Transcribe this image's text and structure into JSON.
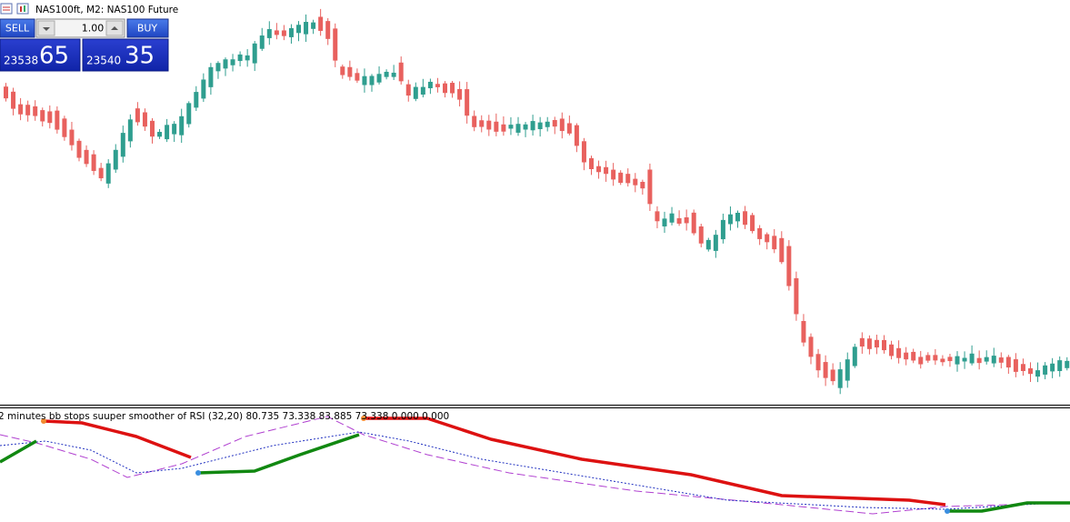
{
  "header": {
    "symbol": "NAS100ft, M2:  NAS100 Future"
  },
  "trade_panel": {
    "sell": "SELL",
    "lot": "1.00",
    "buy": "BUY",
    "bid_main": "23538",
    "bid_big": "65",
    "ask_main": "23540",
    "ask_big": "35"
  },
  "indicator": {
    "label": "2 minutes bb stops suuper smoother of RSI (32,20) 80.735 73.338 83.885 73.338 0.000 0.000"
  }
}
